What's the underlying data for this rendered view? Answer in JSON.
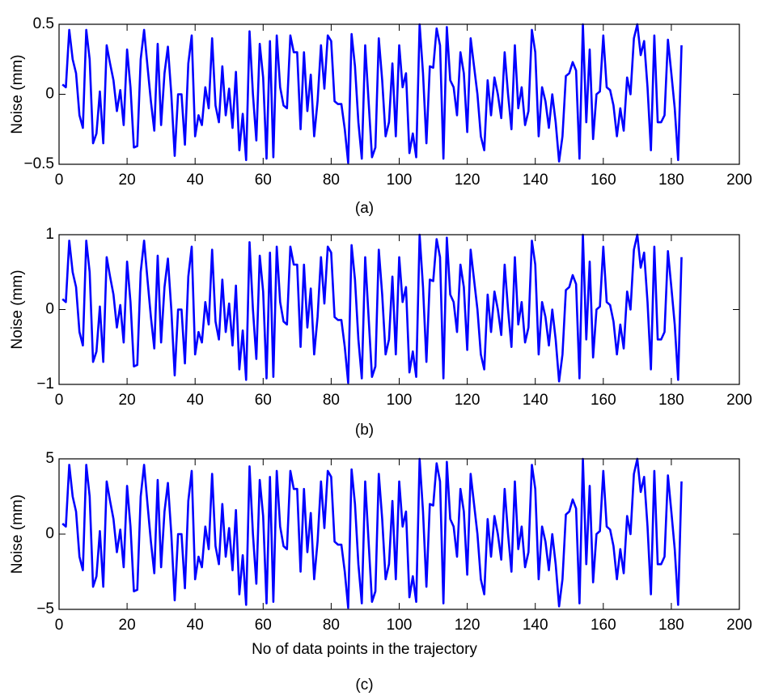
{
  "chart_data": [
    {
      "type": "line",
      "ylabel": "Noise (mm)",
      "caption": "(a)",
      "xlim": [
        0,
        200
      ],
      "xticks": [
        0,
        20,
        40,
        60,
        80,
        100,
        120,
        140,
        160,
        180,
        200
      ],
      "ylim": [
        -0.5,
        0.5
      ],
      "yticks": [
        -0.5,
        0,
        0.5
      ],
      "x": [
        1,
        2,
        3,
        4,
        5,
        6,
        7,
        8,
        9,
        10,
        11,
        12,
        13,
        14,
        15,
        16,
        17,
        18,
        19,
        20,
        21,
        22,
        23,
        24,
        25,
        26,
        27,
        28,
        29,
        30,
        31,
        32,
        33,
        34,
        35,
        36,
        37,
        38,
        39,
        40,
        41,
        42,
        43,
        44,
        45,
        46,
        47,
        48,
        49,
        50,
        51,
        52,
        53,
        54,
        55,
        56,
        57,
        58,
        59,
        60,
        61,
        62,
        63,
        64,
        65,
        66,
        67,
        68,
        69,
        70,
        71,
        72,
        73,
        74,
        75,
        76,
        77,
        78,
        79,
        80,
        81,
        82,
        83,
        84,
        85,
        86,
        87,
        88,
        89,
        90,
        91,
        92,
        93,
        94,
        95,
        96,
        97,
        98,
        99,
        100,
        101,
        102,
        103,
        104,
        105,
        106,
        107,
        108,
        109,
        110,
        111,
        112,
        113,
        114,
        115,
        116,
        117,
        118,
        119,
        120,
        121,
        122,
        123,
        124,
        125,
        126,
        127,
        128,
        129,
        130,
        131,
        132,
        133,
        134,
        135,
        136,
        137,
        138,
        139,
        140,
        141,
        142,
        143,
        144,
        145,
        146,
        147,
        148,
        149,
        150,
        151,
        152,
        153,
        154,
        155,
        156,
        157,
        158,
        159,
        160,
        161,
        162,
        163,
        164,
        165,
        166,
        167,
        168,
        169,
        170,
        171,
        172,
        173,
        174,
        175,
        176,
        177,
        178,
        179,
        180,
        181,
        182,
        183
      ],
      "series": [
        {
          "color": "#0000ff",
          "values": [
            0.07,
            0.05,
            0.46,
            0.25,
            0.15,
            -0.15,
            -0.24,
            0.46,
            0.25,
            -0.35,
            -0.28,
            0.02,
            -0.35,
            0.35,
            0.22,
            0.1,
            -0.12,
            0.03,
            -0.22,
            0.32,
            0.05,
            -0.38,
            -0.37,
            0.25,
            0.46,
            0.2,
            -0.05,
            -0.26,
            0.36,
            -0.22,
            0.15,
            0.34,
            0,
            -0.44,
            0,
            0,
            -0.36,
            0.22,
            0.42,
            -0.3,
            -0.15,
            -0.22,
            0.05,
            -0.1,
            0.4,
            -0.08,
            -0.2,
            0.2,
            -0.15,
            0.04,
            -0.24,
            0.16,
            -0.4,
            -0.14,
            -0.47,
            0.45,
            0,
            -0.33,
            0.36,
            0.12,
            -0.46,
            0.38,
            -0.45,
            0.42,
            0.05,
            -0.08,
            -0.1,
            0.42,
            0.3,
            0.3,
            -0.25,
            0.3,
            -0.12,
            0.14,
            -0.3,
            -0.05,
            0.35,
            0.04,
            0.42,
            0.38,
            -0.05,
            -0.07,
            -0.07,
            -0.25,
            -0.49,
            0.43,
            0.2,
            -0.2,
            -0.46,
            0.35,
            -0.05,
            -0.45,
            -0.38,
            0.4,
            0.1,
            -0.3,
            -0.2,
            0.22,
            -0.3,
            0.35,
            0.05,
            0.15,
            -0.42,
            -0.28,
            -0.45,
            0.5,
            0.15,
            -0.35,
            0.2,
            0.19,
            0.47,
            0.35,
            -0.46,
            0.48,
            0.1,
            0.05,
            -0.15,
            0.3,
            0.15,
            -0.27,
            0.4,
            0.2,
            0,
            -0.3,
            -0.4,
            0.1,
            -0.15,
            0.12,
            0,
            -0.17,
            0.3,
            0,
            -0.25,
            0.35,
            -0.1,
            0.05,
            -0.22,
            -0.12,
            0.46,
            0.3,
            -0.3,
            0.05,
            -0.05,
            -0.24,
            0,
            -0.2,
            -0.48,
            -0.3,
            0.13,
            0.15,
            0.23,
            0.17,
            -0.46,
            0.5,
            -0.2,
            0.32,
            -0.32,
            0,
            0.02,
            0.42,
            0.05,
            0.03,
            -0.08,
            -0.3,
            -0.1,
            -0.26,
            0.12,
            0,
            0.4,
            0.5,
            0.28,
            0.38,
            0.05,
            -0.4,
            0.42,
            -0.2,
            -0.2,
            -0.15,
            0.39,
            0.15,
            -0.1,
            -0.47,
            0.35
          ]
        }
      ]
    },
    {
      "type": "line",
      "ylabel": "Noise (mm)",
      "caption": "(b)",
      "xlim": [
        0,
        200
      ],
      "xticks": [
        0,
        20,
        40,
        60,
        80,
        100,
        120,
        140,
        160,
        180,
        200
      ],
      "ylim": [
        -1,
        1
      ],
      "yticks": [
        -1,
        0,
        1
      ],
      "x": [
        1,
        2,
        3,
        4,
        5,
        6,
        7,
        8,
        9,
        10,
        11,
        12,
        13,
        14,
        15,
        16,
        17,
        18,
        19,
        20,
        21,
        22,
        23,
        24,
        25,
        26,
        27,
        28,
        29,
        30,
        31,
        32,
        33,
        34,
        35,
        36,
        37,
        38,
        39,
        40,
        41,
        42,
        43,
        44,
        45,
        46,
        47,
        48,
        49,
        50,
        51,
        52,
        53,
        54,
        55,
        56,
        57,
        58,
        59,
        60,
        61,
        62,
        63,
        64,
        65,
        66,
        67,
        68,
        69,
        70,
        71,
        72,
        73,
        74,
        75,
        76,
        77,
        78,
        79,
        80,
        81,
        82,
        83,
        84,
        85,
        86,
        87,
        88,
        89,
        90,
        91,
        92,
        93,
        94,
        95,
        96,
        97,
        98,
        99,
        100,
        101,
        102,
        103,
        104,
        105,
        106,
        107,
        108,
        109,
        110,
        111,
        112,
        113,
        114,
        115,
        116,
        117,
        118,
        119,
        120,
        121,
        122,
        123,
        124,
        125,
        126,
        127,
        128,
        129,
        130,
        131,
        132,
        133,
        134,
        135,
        136,
        137,
        138,
        139,
        140,
        141,
        142,
        143,
        144,
        145,
        146,
        147,
        148,
        149,
        150,
        151,
        152,
        153,
        154,
        155,
        156,
        157,
        158,
        159,
        160,
        161,
        162,
        163,
        164,
        165,
        166,
        167,
        168,
        169,
        170,
        171,
        172,
        173,
        174,
        175,
        176,
        177,
        178,
        179,
        180,
        181,
        182,
        183
      ],
      "series": [
        {
          "color": "#0000ff",
          "values": [
            0.14,
            0.1,
            0.92,
            0.5,
            0.3,
            -0.3,
            -0.48,
            0.92,
            0.5,
            -0.7,
            -0.56,
            0.04,
            -0.7,
            0.7,
            0.44,
            0.2,
            -0.24,
            0.06,
            -0.44,
            0.64,
            0.1,
            -0.76,
            -0.74,
            0.5,
            0.92,
            0.4,
            -0.1,
            -0.52,
            0.72,
            -0.44,
            0.3,
            0.68,
            0,
            -0.88,
            0,
            0,
            -0.72,
            0.44,
            0.84,
            -0.6,
            -0.3,
            -0.44,
            0.1,
            -0.2,
            0.8,
            -0.16,
            -0.4,
            0.4,
            -0.3,
            0.08,
            -0.48,
            0.32,
            -0.8,
            -0.28,
            -0.94,
            0.9,
            0,
            -0.66,
            0.72,
            0.24,
            -0.92,
            0.76,
            -0.9,
            0.84,
            0.1,
            -0.16,
            -0.2,
            0.84,
            0.6,
            0.6,
            -0.5,
            0.6,
            -0.24,
            0.28,
            -0.6,
            -0.1,
            0.7,
            0.08,
            0.84,
            0.76,
            -0.1,
            -0.14,
            -0.14,
            -0.5,
            -0.98,
            0.86,
            0.4,
            -0.4,
            -0.92,
            0.7,
            -0.1,
            -0.9,
            -0.76,
            0.8,
            0.2,
            -0.6,
            -0.4,
            0.44,
            -0.6,
            0.7,
            0.1,
            0.3,
            -0.84,
            -0.56,
            -0.9,
            1,
            0.3,
            -0.7,
            0.4,
            0.38,
            0.94,
            0.7,
            -0.92,
            0.96,
            0.2,
            0.1,
            -0.3,
            0.6,
            0.3,
            -0.54,
            0.8,
            0.4,
            0,
            -0.6,
            -0.8,
            0.2,
            -0.3,
            0.24,
            0,
            -0.34,
            0.6,
            0,
            -0.5,
            0.7,
            -0.2,
            0.1,
            -0.44,
            -0.24,
            0.92,
            0.6,
            -0.6,
            0.1,
            -0.1,
            -0.48,
            0,
            -0.4,
            -0.96,
            -0.6,
            0.26,
            0.3,
            0.46,
            0.34,
            -0.92,
            1,
            -0.4,
            0.64,
            -0.64,
            0,
            0.04,
            0.84,
            0.1,
            0.06,
            -0.16,
            -0.6,
            -0.2,
            -0.52,
            0.24,
            0,
            0.8,
            1,
            0.56,
            0.76,
            0.1,
            -0.8,
            0.84,
            -0.4,
            -0.4,
            -0.3,
            0.78,
            0.3,
            -0.2,
            -0.94,
            0.7
          ]
        }
      ]
    },
    {
      "type": "line",
      "ylabel": "Noise (mm)",
      "xlabel": "No of data points in the trajectory",
      "caption": "(c)",
      "xlim": [
        0,
        200
      ],
      "xticks": [
        0,
        20,
        40,
        60,
        80,
        100,
        120,
        140,
        160,
        180,
        200
      ],
      "ylim": [
        -5,
        5
      ],
      "yticks": [
        -5,
        0,
        5
      ],
      "x": [
        1,
        2,
        3,
        4,
        5,
        6,
        7,
        8,
        9,
        10,
        11,
        12,
        13,
        14,
        15,
        16,
        17,
        18,
        19,
        20,
        21,
        22,
        23,
        24,
        25,
        26,
        27,
        28,
        29,
        30,
        31,
        32,
        33,
        34,
        35,
        36,
        37,
        38,
        39,
        40,
        41,
        42,
        43,
        44,
        45,
        46,
        47,
        48,
        49,
        50,
        51,
        52,
        53,
        54,
        55,
        56,
        57,
        58,
        59,
        60,
        61,
        62,
        63,
        64,
        65,
        66,
        67,
        68,
        69,
        70,
        71,
        72,
        73,
        74,
        75,
        76,
        77,
        78,
        79,
        80,
        81,
        82,
        83,
        84,
        85,
        86,
        87,
        88,
        89,
        90,
        91,
        92,
        93,
        94,
        95,
        96,
        97,
        98,
        99,
        100,
        101,
        102,
        103,
        104,
        105,
        106,
        107,
        108,
        109,
        110,
        111,
        112,
        113,
        114,
        115,
        116,
        117,
        118,
        119,
        120,
        121,
        122,
        123,
        124,
        125,
        126,
        127,
        128,
        129,
        130,
        131,
        132,
        133,
        134,
        135,
        136,
        137,
        138,
        139,
        140,
        141,
        142,
        143,
        144,
        145,
        146,
        147,
        148,
        149,
        150,
        151,
        152,
        153,
        154,
        155,
        156,
        157,
        158,
        159,
        160,
        161,
        162,
        163,
        164,
        165,
        166,
        167,
        168,
        169,
        170,
        171,
        172,
        173,
        174,
        175,
        176,
        177,
        178,
        179,
        180,
        181,
        182,
        183
      ],
      "series": [
        {
          "color": "#0000ff",
          "values": [
            0.7,
            0.5,
            4.6,
            2.5,
            1.5,
            -1.5,
            -2.4,
            4.6,
            2.5,
            -3.5,
            -2.8,
            0.2,
            -3.5,
            3.5,
            2.2,
            1,
            -1.2,
            0.3,
            -2.2,
            3.2,
            0.5,
            -3.8,
            -3.7,
            2.5,
            4.6,
            2,
            -0.5,
            -2.6,
            3.6,
            -2.2,
            1.5,
            3.4,
            0,
            -4.4,
            0,
            0,
            -3.6,
            2.2,
            4.2,
            -3,
            -1.5,
            -2.2,
            0.5,
            -1,
            4,
            -0.8,
            -2,
            2,
            -1.5,
            0.4,
            -2.4,
            1.6,
            -4,
            -1.4,
            -4.7,
            4.5,
            0,
            -3.3,
            3.6,
            1.2,
            -4.6,
            3.8,
            -4.5,
            4.2,
            0.5,
            -0.8,
            -1,
            4.2,
            3,
            3,
            -2.5,
            3,
            -1.2,
            1.4,
            -3,
            -0.5,
            3.5,
            0.4,
            4.2,
            3.8,
            -0.5,
            -0.7,
            -0.7,
            -2.5,
            -4.9,
            4.3,
            2,
            -2,
            -4.6,
            3.5,
            -0.5,
            -4.5,
            -3.8,
            4,
            1,
            -3,
            -2,
            2.2,
            -3,
            3.5,
            0.5,
            1.5,
            -4.2,
            -2.8,
            -4.5,
            5,
            1.5,
            -3.5,
            2,
            1.9,
            4.7,
            3.5,
            -4.6,
            4.8,
            1,
            0.5,
            -1.5,
            3,
            1.5,
            -2.7,
            4,
            2,
            0,
            -3,
            -4,
            1,
            -1.5,
            1.2,
            0,
            -1.7,
            3,
            0,
            -2.5,
            3.5,
            -1,
            0.5,
            -2.2,
            -1.2,
            4.6,
            3,
            -3,
            0.5,
            -0.5,
            -2.4,
            0,
            -2,
            -4.8,
            -3,
            1.3,
            1.5,
            2.3,
            1.7,
            -4.6,
            5,
            -2,
            3.2,
            -3.2,
            0,
            0.2,
            4.2,
            0.5,
            0.3,
            -0.8,
            -3,
            -1,
            -2.6,
            1.2,
            0,
            4,
            5,
            2.8,
            3.8,
            0.5,
            -4,
            4.2,
            -2,
            -2,
            -1.5,
            3.9,
            1.5,
            -1,
            -4.7,
            3.5
          ]
        }
      ]
    }
  ]
}
